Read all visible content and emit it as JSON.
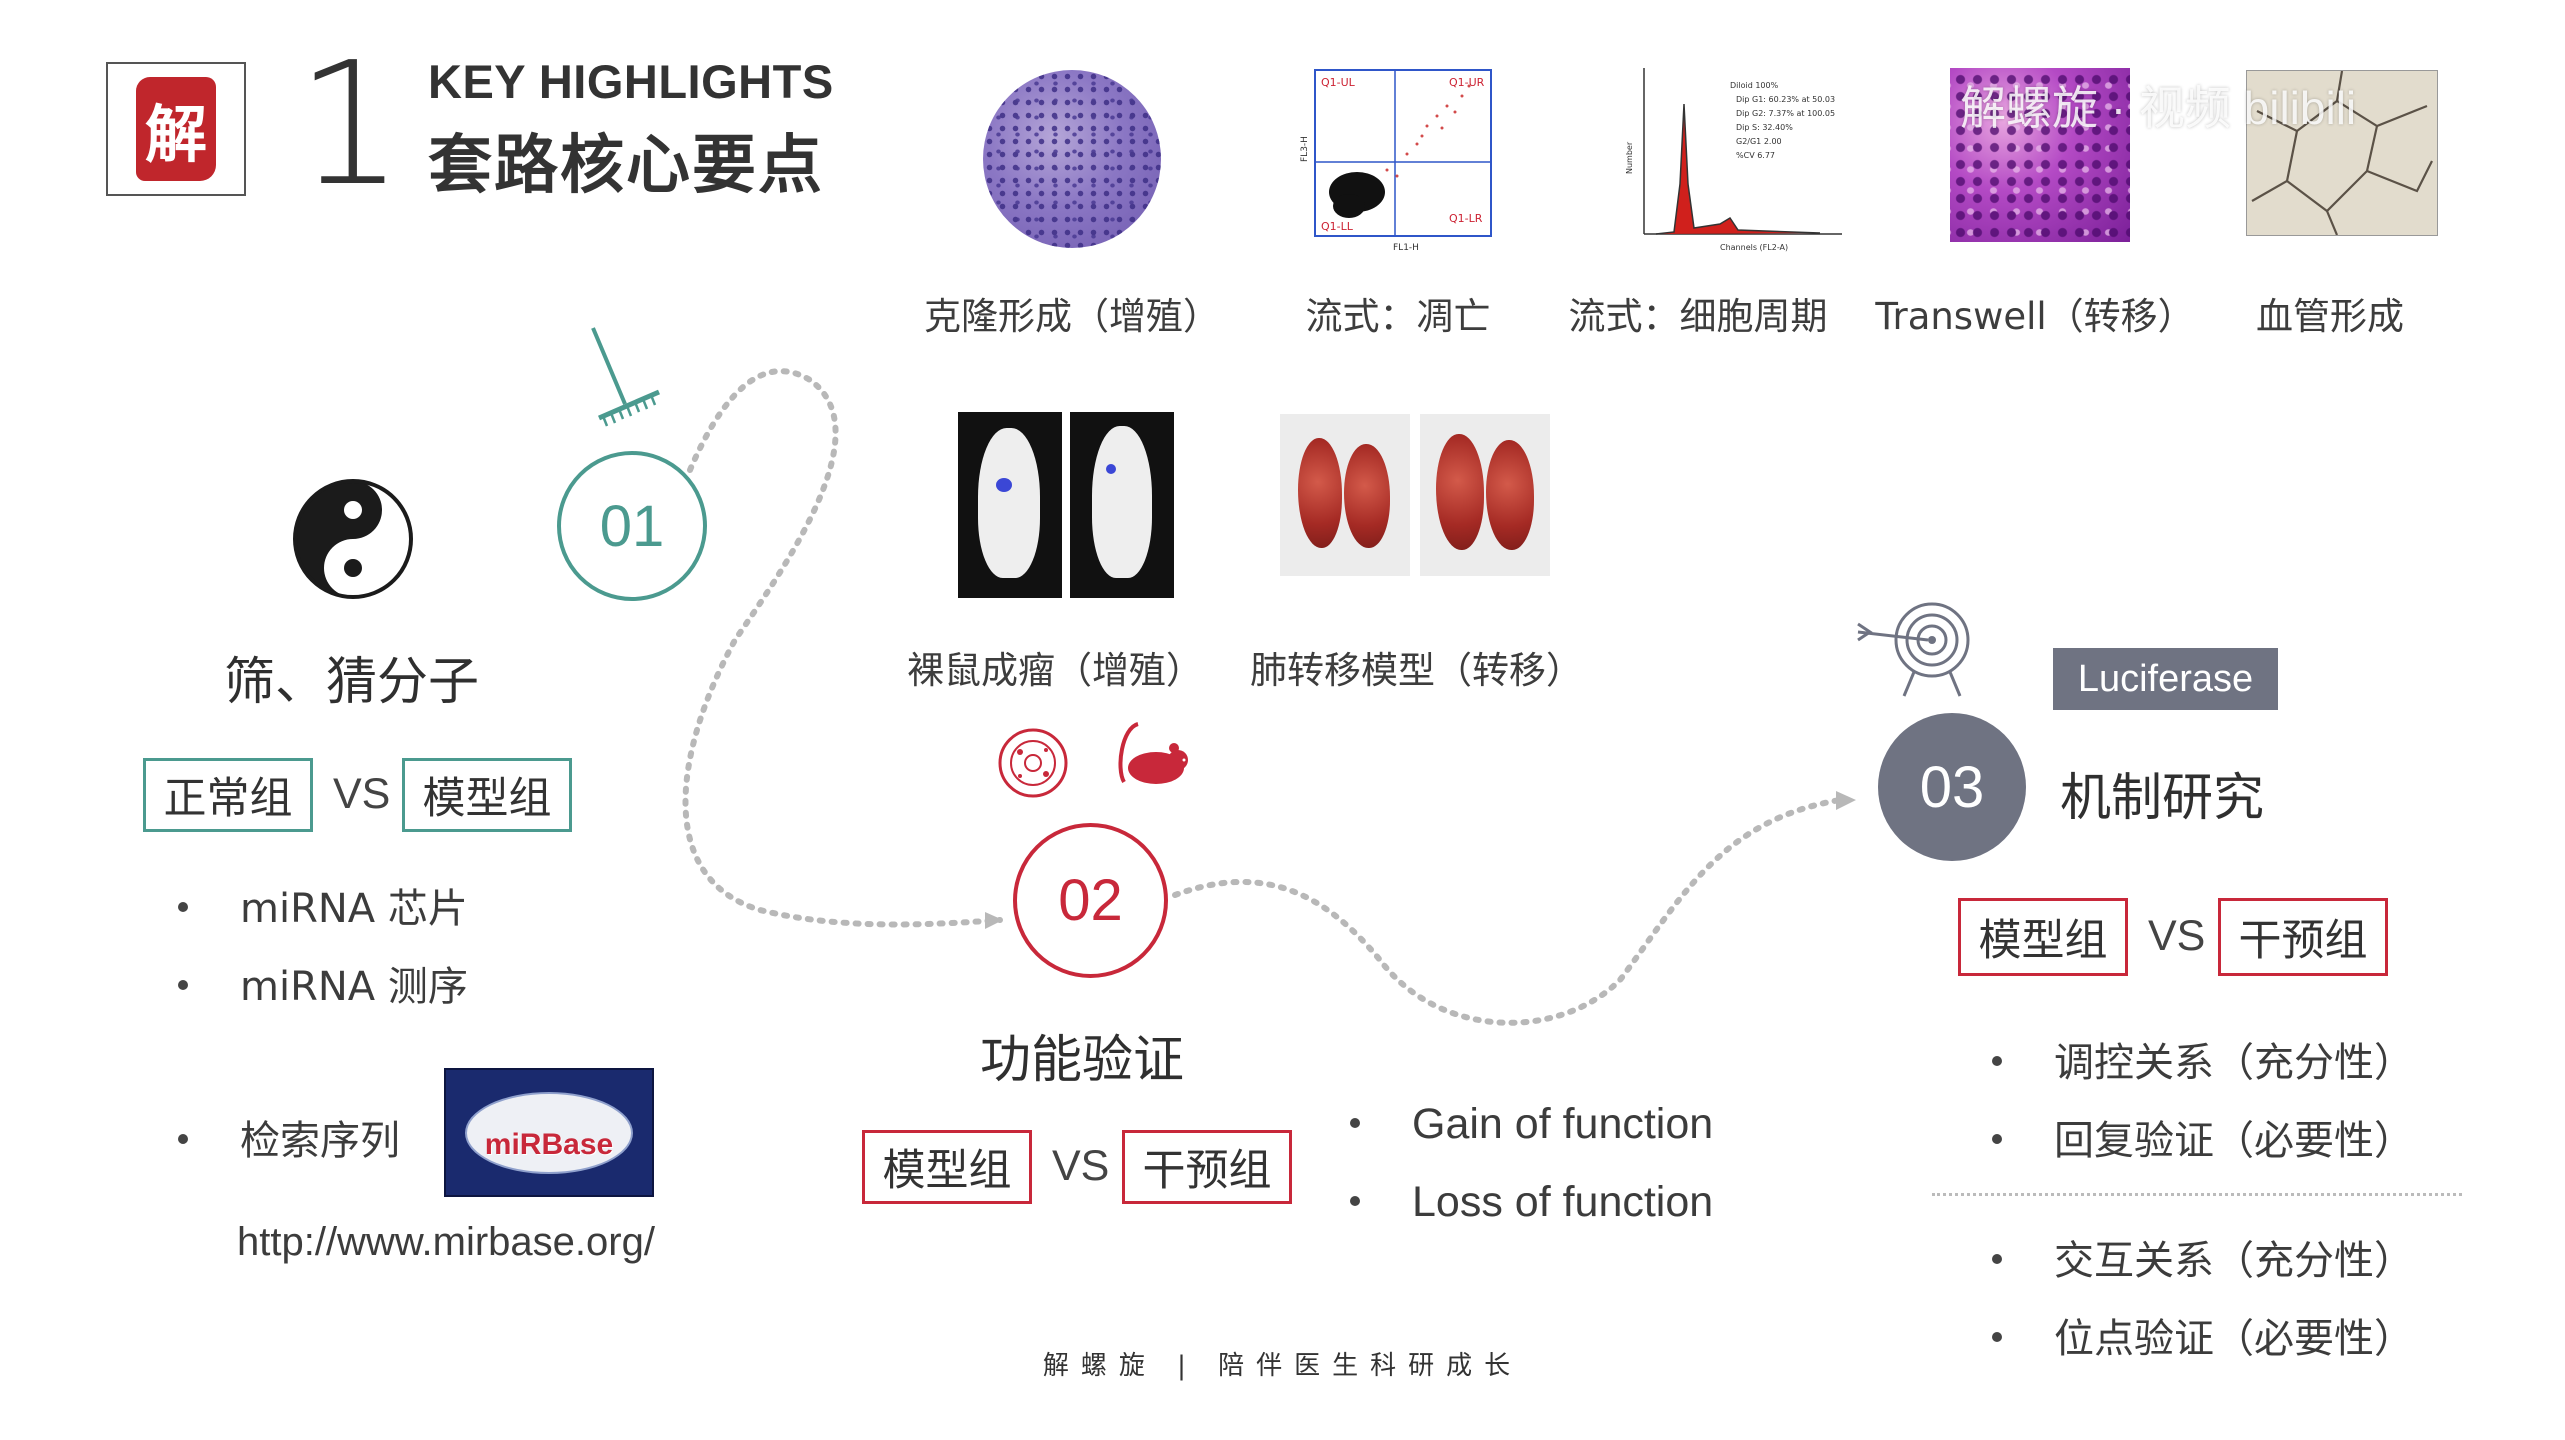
{
  "header": {
    "seal_char": "解",
    "number": "1",
    "title_en": "KEY HIGHLIGHTS",
    "title_cn": "套路核心要点"
  },
  "assays_top": [
    {
      "label": "克隆形成（增殖）"
    },
    {
      "label": "流式：凋亡"
    },
    {
      "label": "流式：细胞周期"
    },
    {
      "label": "Transwell（转移）"
    },
    {
      "label": "血管形成"
    }
  ],
  "assays_vivo": [
    {
      "label": "裸鼠成瘤（增殖）"
    },
    {
      "label": "肺转移模型（转移）"
    }
  ],
  "flow_apoptosis": {
    "quadrants": [
      "Q1-UL",
      "Q1-UR",
      "Q1-LL",
      "Q1-LR"
    ],
    "xlabel": "FL1-H",
    "ylabel": "FL3-H"
  },
  "flow_cycle": {
    "lines": [
      "Diloid 100%",
      "Dip G1: 60.23% at 50.03",
      "Dip G2: 7.37% at 100.05",
      "Dip S: 32.40%",
      "G2/G1 2.00",
      "%CV 6.77"
    ],
    "xlabel": "Channels (FL2-A)",
    "ylabel": "Number"
  },
  "watermark": "解螺旋 · 视频  bilibili",
  "step1": {
    "number": "01",
    "title": "筛、猜分子",
    "tag_left": "正常组",
    "vs": "VS",
    "tag_right": "模型组",
    "bullets": [
      "miRNA 芯片",
      "miRNA 测序",
      "检索序列"
    ],
    "url": "http://www.mirbase.org/",
    "logo_text": "miRBase"
  },
  "step2": {
    "number": "02",
    "title": "功能验证",
    "tag_left": "模型组",
    "vs": "VS",
    "tag_right": "干预组",
    "bullets": [
      "Gain of function",
      "Loss of function"
    ]
  },
  "step3": {
    "number": "03",
    "title": "机制研究",
    "badge": "Luciferase",
    "tag_left": "模型组",
    "vs": "VS",
    "tag_right": "干预组",
    "bullets_a": [
      "调控关系（充分性）",
      "回复验证（必要性）"
    ],
    "bullets_b": [
      "交互关系（充分性）",
      "位点验证（必要性）"
    ]
  },
  "footer": {
    "text": "解螺旋  |  陪伴医生科研成长"
  },
  "colors": {
    "teal": "#4b9a8f",
    "red": "#c8283a",
    "slate": "#6f7382"
  }
}
